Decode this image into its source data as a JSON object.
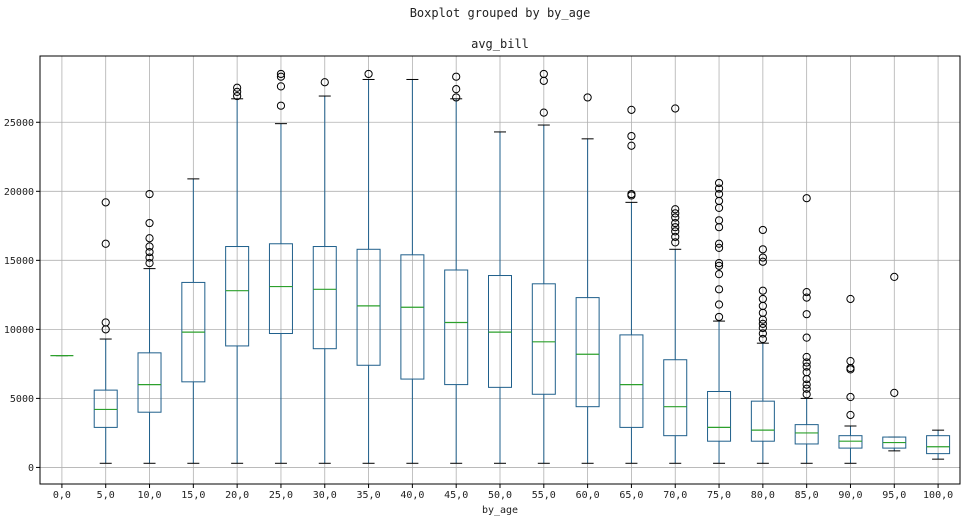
{
  "figure": {
    "suptitle": "Boxplot grouped by by_age"
  },
  "chart_data": {
    "type": "boxplot",
    "title": "avg_bill",
    "xlabel": "by_age",
    "ylabel": "",
    "grid": true,
    "ylim": [
      -1200,
      29800
    ],
    "yticks": [
      0,
      5000,
      10000,
      15000,
      20000,
      25000
    ],
    "colors": {
      "box": "#1f5f8b",
      "median": "#2ca02c",
      "flier": "#000000",
      "grid": "#b0b0b0"
    },
    "categories": [
      "0,0",
      "5,0",
      "10,0",
      "15,0",
      "20,0",
      "25,0",
      "30,0",
      "35,0",
      "40,0",
      "45,0",
      "50,0",
      "55,0",
      "60,0",
      "65,0",
      "70,0",
      "75,0",
      "80,0",
      "85,0",
      "90,0",
      "95,0",
      "100,0"
    ],
    "boxes": [
      {
        "whislo": 8100,
        "q1": 8100,
        "med": 8100,
        "q3": 8100,
        "whishi": 8100,
        "fliers": []
      },
      {
        "whislo": 300,
        "q1": 2900,
        "med": 4200,
        "q3": 5600,
        "whishi": 9300,
        "fliers": [
          10000,
          10500,
          16200,
          19200
        ]
      },
      {
        "whislo": 300,
        "q1": 4000,
        "med": 6000,
        "q3": 8300,
        "whishi": 14400,
        "fliers": [
          14800,
          15200,
          15600,
          16000,
          16600,
          17700,
          19800
        ]
      },
      {
        "whislo": 300,
        "q1": 6200,
        "med": 9800,
        "q3": 13400,
        "whishi": 20900,
        "fliers": []
      },
      {
        "whislo": 300,
        "q1": 8800,
        "med": 12800,
        "q3": 16000,
        "whishi": 26700,
        "fliers": [
          26900,
          27200,
          27500
        ]
      },
      {
        "whislo": 300,
        "q1": 9700,
        "med": 13100,
        "q3": 16200,
        "whishi": 24900,
        "fliers": [
          26200,
          27600,
          28300,
          28500
        ]
      },
      {
        "whislo": 300,
        "q1": 8600,
        "med": 12900,
        "q3": 16000,
        "whishi": 26900,
        "fliers": [
          27900
        ]
      },
      {
        "whislo": 300,
        "q1": 7400,
        "med": 11700,
        "q3": 15800,
        "whishi": 28100,
        "fliers": [
          28500
        ]
      },
      {
        "whislo": 300,
        "q1": 6400,
        "med": 11600,
        "q3": 15400,
        "whishi": 28100,
        "fliers": []
      },
      {
        "whislo": 300,
        "q1": 6000,
        "med": 10500,
        "q3": 14300,
        "whishi": 26700,
        "fliers": [
          26800,
          27400,
          28300
        ]
      },
      {
        "whislo": 300,
        "q1": 5800,
        "med": 9800,
        "q3": 13900,
        "whishi": 24300,
        "fliers": []
      },
      {
        "whislo": 300,
        "q1": 5300,
        "med": 9100,
        "q3": 13300,
        "whishi": 24800,
        "fliers": [
          25700,
          28000,
          28500
        ]
      },
      {
        "whislo": 300,
        "q1": 4400,
        "med": 8200,
        "q3": 12300,
        "whishi": 23800,
        "fliers": [
          26800
        ]
      },
      {
        "whislo": 300,
        "q1": 2900,
        "med": 6000,
        "q3": 9600,
        "whishi": 19200,
        "fliers": [
          19700,
          19800,
          23300,
          24000,
          25900
        ]
      },
      {
        "whislo": 300,
        "q1": 2300,
        "med": 4400,
        "q3": 7800,
        "whishi": 15800,
        "fliers": [
          16300,
          16700,
          17100,
          17400,
          17700,
          18100,
          18400,
          18700,
          26000
        ]
      },
      {
        "whislo": 300,
        "q1": 1900,
        "med": 2900,
        "q3": 5500,
        "whishi": 10600,
        "fliers": [
          10900,
          11800,
          12900,
          14000,
          14600,
          14800,
          15900,
          16200,
          17400,
          17900,
          18800,
          19300,
          19800,
          20200,
          20600
        ]
      },
      {
        "whislo": 300,
        "q1": 1900,
        "med": 2700,
        "q3": 4800,
        "whishi": 9000,
        "fliers": [
          9300,
          9700,
          10100,
          10400,
          10700,
          11200,
          11700,
          12200,
          12800,
          14900,
          15200,
          15800,
          17200
        ]
      },
      {
        "whislo": 300,
        "q1": 1700,
        "med": 2500,
        "q3": 3100,
        "whishi": 5000,
        "fliers": [
          5300,
          5700,
          6000,
          6400,
          6900,
          7300,
          7600,
          8000,
          9400,
          11100,
          12300,
          12700,
          19500
        ]
      },
      {
        "whislo": 300,
        "q1": 1400,
        "med": 1900,
        "q3": 2300,
        "whishi": 3000,
        "fliers": [
          3800,
          5100,
          7100,
          7200,
          7700,
          12200
        ]
      },
      {
        "whislo": 1200,
        "q1": 1400,
        "med": 1800,
        "q3": 2200,
        "whishi": 2200,
        "fliers": [
          5400,
          13800
        ]
      },
      {
        "whislo": 600,
        "q1": 1000,
        "med": 1500,
        "q3": 2300,
        "whishi": 2700,
        "fliers": []
      }
    ]
  }
}
